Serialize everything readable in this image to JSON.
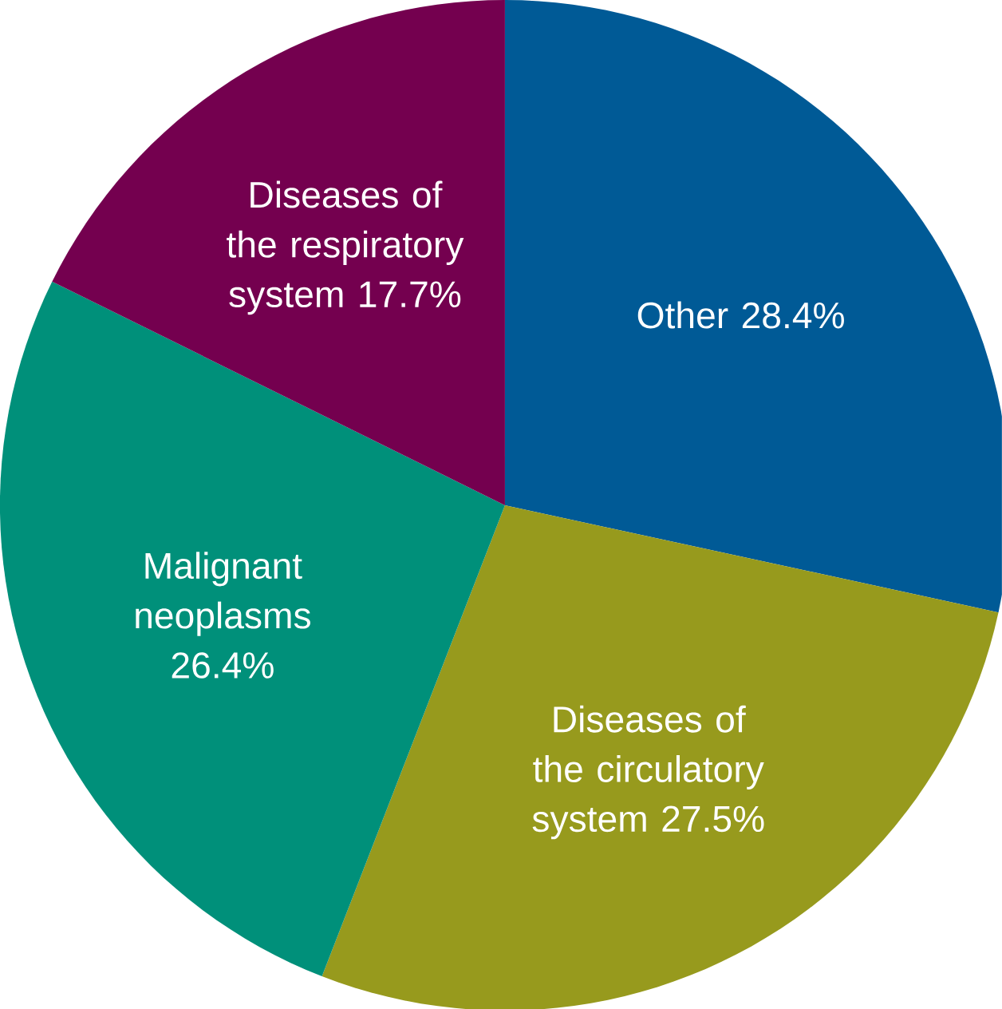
{
  "chart_data": {
    "type": "pie",
    "categories": [
      "Other",
      "Diseases of the circulatory system",
      "Malignant neoplasms",
      "Diseases of the respiratory system"
    ],
    "values": [
      28.4,
      27.5,
      26.4,
      17.7
    ],
    "colors": [
      "#005a96",
      "#979a1d",
      "#00907a",
      "#74004f"
    ],
    "value_labels": [
      "28.4%",
      "27.5%",
      "26.4%",
      "17.7%"
    ]
  }
}
